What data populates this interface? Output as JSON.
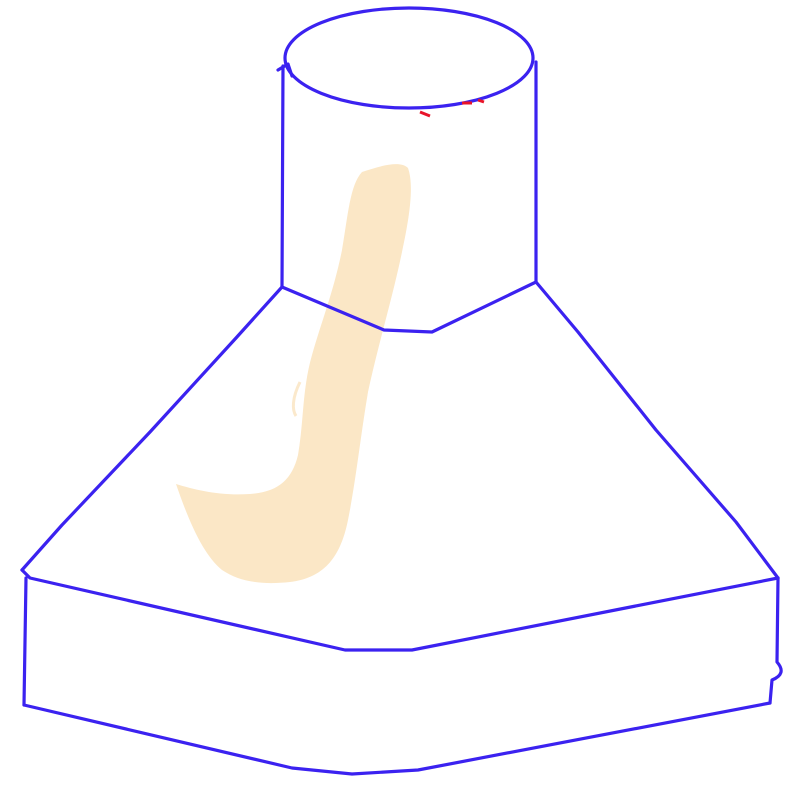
{
  "figure": {
    "subject": "",
    "colors": {
      "background": "#ffffff",
      "outline": "#3b22f0",
      "highlight": "#fbe7c6",
      "accent": "#e8142a"
    }
  }
}
